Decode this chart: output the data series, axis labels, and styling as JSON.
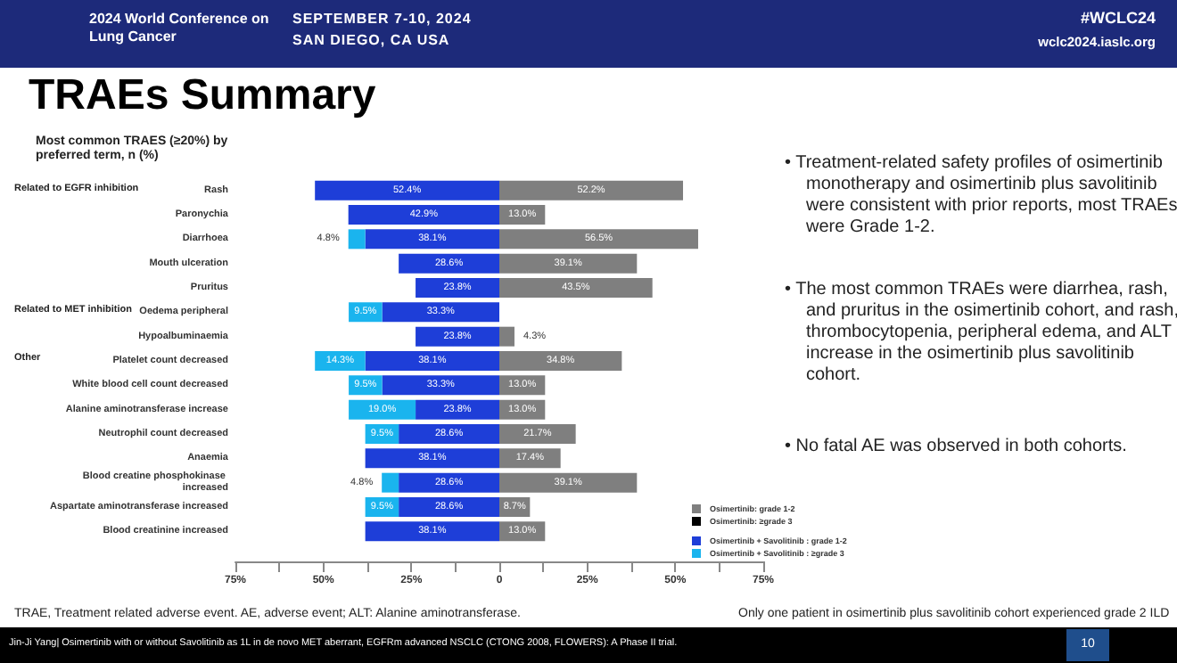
{
  "chart_data": [
    {
      "type": "bar",
      "orientation": "horizontal",
      "stacked": true,
      "title": "TRAEs Summary",
      "ylabel": "Most common TRAES (≥20%) by preferred term, n (%)",
      "categories": [
        "Rash",
        "Paronychia",
        "Diarrhoea",
        "Mouth ulceration",
        "Pruritus",
        "Oedema peripheral",
        "Hypoalbuminaemia",
        "Platelet count decreased",
        "White blood cell count decreased",
        "Alanine aminotransferase increase",
        "Neutrophil count decreased",
        "Anaemia",
        "Blood creatine phosphokinase increased",
        "Aspartate aminotransferase increased",
        "Blood creatinine increased"
      ],
      "series": [
        {
          "name": "Osimertinib + Savolitinib : grade 1-2",
          "color": "#1e3ed8",
          "values": [
            52.4,
            42.9,
            38.1,
            28.6,
            23.8,
            33.3,
            23.8,
            38.1,
            33.3,
            23.8,
            28.6,
            38.1,
            28.6,
            28.6,
            38.1
          ],
          "value_labels": [
            "52.4%",
            "42.9%",
            "38.1%",
            "28.6%",
            "23.8%",
            "33.3%",
            "23.8%",
            "38.1%",
            "33.3%",
            "23.8%",
            "28.6%",
            "38.1%",
            "28.6%",
            "28.6%",
            "38.1%"
          ]
        },
        {
          "name": "Osimertinib + Savolitinib : ≥grade 3",
          "color": "#1ab4ee",
          "values": [
            null,
            null,
            4.8,
            null,
            null,
            9.5,
            null,
            14.3,
            9.5,
            19.0,
            9.5,
            null,
            4.8,
            9.5,
            null
          ],
          "value_labels": [
            null,
            null,
            "4.8%",
            null,
            null,
            "9.5%",
            null,
            "14.3%",
            "9.5%",
            "19.0%",
            "9.5%",
            null,
            "4.8%",
            "9.5%",
            null
          ]
        }
      ],
      "xlim": [
        75,
        0
      ],
      "xticks": [
        {
          "value": 75,
          "label": "75%"
        },
        {
          "value": 62.5,
          "label": null
        },
        {
          "value": 50,
          "label": "50%"
        },
        {
          "value": 37.5,
          "label": null
        },
        {
          "value": 25,
          "label": "25%"
        },
        {
          "value": 12.5,
          "label": null
        },
        0
      ],
      "grid": false,
      "legend": "bottom right",
      "annotations": [
        "Related to EGFR inhibition",
        "Related to MET inhibition",
        "Other",
        "• Treatment-related safety profiles of osimertinib monotherapy and osimertinib plus savolitinib were consistent with prior reports, most TRAEs were Grade 1-2.",
        "• The most common TRAEs were diarrhea, rash, and pruritus in the osimertinib cohort, and rash, thrombocytopenia, peripheral edema, and ALT increase in the osimertinib plus savolitinib cohort.",
        "• No fatal AE was observed in both cohorts.",
        "TRAE, Treatment related adverse event.  AE, adverse event; ALT: Alanine aminotransferase.",
        "Only one patient in osimertinib plus savolitinib cohort experienced grade 2 ILD",
        "2024 World Conference on Lung Cancer",
        "SEPTEMBER 7-10, 2024",
        "SAN DIEGO, CA USA",
        "#WCLC24",
        "wclc2024.iaslc.org",
        "Jin-Ji Yang| Osimertinib with or without Savolitinib as 1L in de novo MET aberrant, EGFRm advanced NSCLC (CTONG 2008, FLOWERS): A Phase II trial.",
        "10"
      ]
    },
    {
      "type": "bar",
      "orientation": "horizontal",
      "stacked": true,
      "categories": [
        "Rash",
        "Paronychia",
        "Diarrhoea",
        "Mouth ulceration",
        "Pruritus",
        "Oedema peripheral",
        "Hypoalbuminaemia",
        "Platelet count decreased",
        "White blood cell count decreased",
        "Alanine aminotransferase increase",
        "Neutrophil count decreased",
        "Anaemia",
        "Blood creatine phosphokinase increased",
        "Aspartate aminotransferase increased",
        "Blood creatinine increased"
      ],
      "series": [
        {
          "name": "Osimertinib: grade 1-2",
          "color": "#7f7f7f",
          "values": [
            52.2,
            13.0,
            56.5,
            39.1,
            43.5,
            null,
            4.3,
            34.8,
            13.0,
            13.0,
            21.7,
            17.4,
            39.1,
            8.7,
            13.0
          ],
          "value_labels": [
            "52.2%",
            "13.0%",
            "56.5%",
            "39.1%",
            "43.5%",
            null,
            "4.3%",
            "34.8%",
            "13.0%",
            "13.0%",
            "21.7%",
            "17.4%",
            "39.1%",
            "8.7%",
            "13.0%"
          ]
        },
        {
          "name": "Osimertinib: ≥grade 3",
          "color": "#000000",
          "values": [
            null,
            null,
            null,
            null,
            null,
            null,
            null,
            null,
            null,
            null,
            null,
            null,
            null,
            null,
            null
          ]
        }
      ],
      "xlim": [
        0,
        75
      ],
      "xticks": [
        {
          "value": 0,
          "label": null
        },
        {
          "value": 12.5,
          "label": null
        },
        {
          "value": 25,
          "label": "25%"
        },
        {
          "value": 37.5,
          "label": null
        },
        {
          "value": 50,
          "label": "50%"
        },
        {
          "value": 62.5,
          "label": null
        },
        {
          "value": 75,
          "label": "75%"
        }
      ],
      "grid": false,
      "legend": "bottom right",
      "tick_labels": "x"
    }
  ]
}
